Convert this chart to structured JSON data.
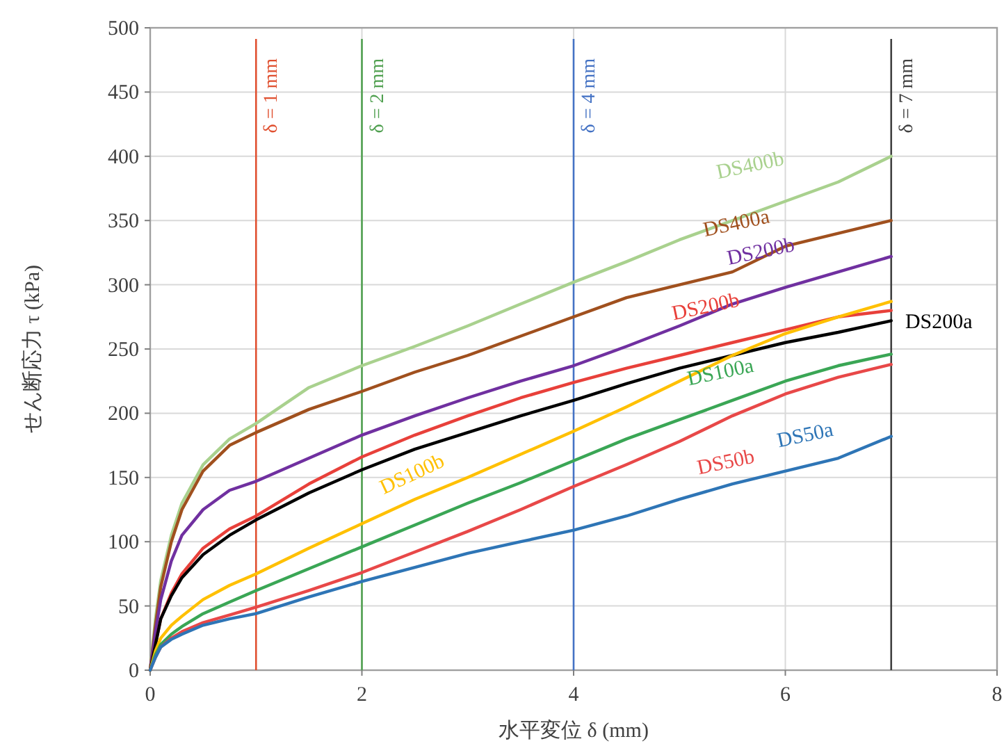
{
  "chart_data": {
    "type": "line",
    "xlabel": "水平変位 δ (mm)",
    "ylabel": "せん断応力 τ (kPa)",
    "x": [
      0,
      0.05,
      0.1,
      0.2,
      0.3,
      0.5,
      0.75,
      1,
      1.5,
      2,
      2.5,
      3,
      3.5,
      4,
      4.5,
      5,
      5.5,
      6,
      6.5,
      7
    ],
    "series": [
      {
        "name": "DS400b",
        "color": "#a9d18e",
        "values": [
          0,
          40,
          70,
          105,
          130,
          160,
          180,
          192,
          220,
          237,
          252,
          268,
          285,
          302,
          318,
          335,
          350,
          365,
          380,
          400
        ]
      },
      {
        "name": "DS400a",
        "color": "#a0501e",
        "values": [
          0,
          35,
          65,
          100,
          125,
          155,
          175,
          185,
          203,
          217,
          232,
          245,
          260,
          275,
          290,
          300,
          310,
          330,
          340,
          350
        ]
      },
      {
        "name": "DS200b",
        "color": "#7030a0",
        "values": [
          0,
          30,
          55,
          85,
          105,
          125,
          140,
          147,
          165,
          183,
          198,
          212,
          225,
          237,
          252,
          268,
          285,
          298,
          310,
          322
        ]
      },
      {
        "name": "DS200b",
        "color": "#e8403a",
        "values": [
          0,
          20,
          40,
          60,
          75,
          95,
          110,
          120,
          145,
          166,
          183,
          198,
          212,
          224,
          235,
          245,
          255,
          265,
          275,
          280
        ]
      },
      {
        "name": "DS200a",
        "color": "#000000",
        "values": [
          0,
          20,
          40,
          58,
          72,
          90,
          105,
          117,
          138,
          156,
          172,
          185,
          198,
          210,
          223,
          235,
          245,
          255,
          263,
          272
        ]
      },
      {
        "name": "DS100b",
        "color": "#ffc000",
        "values": [
          0,
          15,
          25,
          35,
          42,
          55,
          66,
          75,
          95,
          114,
          133,
          150,
          168,
          186,
          205,
          225,
          245,
          262,
          275,
          287
        ]
      },
      {
        "name": "DS100a",
        "color": "#3aa655",
        "values": [
          0,
          12,
          20,
          28,
          34,
          44,
          53,
          62,
          79,
          96,
          113,
          130,
          146,
          163,
          180,
          195,
          210,
          225,
          237,
          246
        ]
      },
      {
        "name": "DS50b",
        "color": "#e84848",
        "values": [
          0,
          10,
          18,
          25,
          30,
          37,
          43,
          49,
          62,
          76,
          92,
          108,
          125,
          143,
          160,
          178,
          198,
          215,
          228,
          238
        ]
      },
      {
        "name": "DS50a",
        "color": "#2e75b6",
        "values": [
          0,
          10,
          18,
          24,
          28,
          35,
          40,
          44,
          57,
          69,
          80,
          91,
          100,
          109,
          120,
          133,
          145,
          155,
          165,
          182
        ]
      }
    ],
    "xlim": [
      0,
      8
    ],
    "xticks": [
      0,
      2,
      4,
      6,
      8
    ],
    "ylim": [
      0,
      500
    ],
    "yticks": [
      0,
      50,
      100,
      150,
      200,
      250,
      300,
      350,
      400,
      450,
      500
    ],
    "ref_lines": [
      {
        "axis": "x",
        "value": 1,
        "label": "δ = 1 mm",
        "color": "#e05030"
      },
      {
        "axis": "x",
        "value": 2,
        "label": "δ = 2 mm",
        "color": "#50a050"
      },
      {
        "axis": "x",
        "value": 4,
        "label": "δ = 4 mm",
        "color": "#4472c4"
      },
      {
        "axis": "x",
        "value": 7,
        "label": "δ = 7 mm",
        "color": "#404040"
      }
    ],
    "grid": true,
    "marker": "none",
    "line_style": "solid"
  }
}
